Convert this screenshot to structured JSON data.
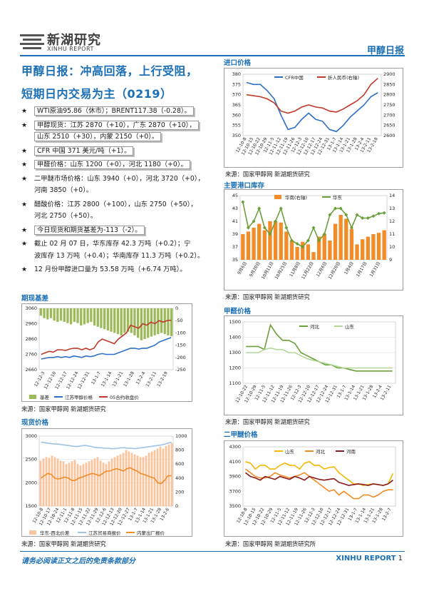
{
  "header": {
    "logo_cn": "新湖研究",
    "logo_en": "XINHU REPORT",
    "report_type": "甲醇日报"
  },
  "title": {
    "line1": "甲醇日报：冲高回落，上行受阻，",
    "line2": "短期日内交易为主（0219）"
  },
  "bullets": [
    {
      "text": "WTI原油95.86（休市）；BRENT117.38（-0.28）。",
      "boxed": true
    },
    {
      "text": "甲醇现货：江苏 2870（+10），广东 2870（+10），",
      "boxed": true
    },
    {
      "text": "山东 2510（+30），内蒙 2150（+0）。",
      "boxed": true,
      "cont": true
    },
    {
      "text": "CFR 中国 371 美元/吨（+1）。",
      "boxed": true
    },
    {
      "text": "甲醛价格：山东 1200（+0），河北 1180（+0）。",
      "boxed": true
    },
    {
      "text": "二甲醚市场价格：山东 3940（+0），河北 3720（+0），",
      "boxed": false
    },
    {
      "text": "河南 3850（+0）。",
      "boxed": false,
      "cont": true
    },
    {
      "text": "醋酸价格：江苏 2800（+100），山东 2750（+50），",
      "boxed": false
    },
    {
      "text": "河北 2750（+50）。",
      "boxed": false,
      "cont": true
    },
    {
      "text": "今日现货和期货基差为-113（-2）。",
      "boxed": true
    },
    {
      "text": "截止 02 月 07 日，华东库存 42.3 万吨（+0.2）；宁",
      "boxed": false
    },
    {
      "text": "波库存 13 万吨（+0.4）；华南库存 11.3 万吨（+0.2）。",
      "boxed": false,
      "cont": true
    },
    {
      "text": "12 月份甲醇进口量为 53.58 万吨（+6.74 万吨）。",
      "boxed": false
    }
  ],
  "sections": {
    "import": "进口价格",
    "inventory": "主要港口库存",
    "basis": "期现基差",
    "formaldehyde": "甲醛价格",
    "spot": "现货价格",
    "dme": "二甲醚价格"
  },
  "sources": {
    "s1": "来源：国家甲醇网  新湖期货研究",
    "s2": "来源：国家甲醇网  新湖期货研究",
    "s3": "来源：国家甲醇网  新湖期货研究",
    "s4": "来源：国家甲醇网  新湖期货研究",
    "s5": "来源：国家甲醇网  新湖期货研究",
    "s6": "来源：国家甲醇网  新湖期货研究所"
  },
  "footer": {
    "disclaimer": "请务必阅读正文之后的免责条款部分",
    "brand": "XINHU REPORT",
    "page": "1"
  },
  "colors": {
    "accent": "#1a6fb5",
    "blue": "#2e6fc9",
    "red": "#c0392b",
    "green": "#6a9f3a",
    "orange": "#f28c28",
    "olive": "#9bbb59",
    "lightgreen": "#b5d69b",
    "darkred": "#8b1a1a",
    "peach": "#f7c59f",
    "lightblue": "#9dc3e6",
    "yellow": "#f5b800"
  },
  "chart_data": [
    {
      "id": "import",
      "type": "line",
      "x_labels": [
        "12-10-8",
        "12-10-15",
        "12-10-22",
        "12-10-29",
        "12-11-5",
        "12-11-12",
        "12-11-19",
        "12-11-26",
        "12-12-3",
        "12-12-10",
        "12-12-17",
        "12-12-24",
        "12-12-31",
        "13-1-7",
        "13-1-14",
        "13-1-21",
        "13-1-28",
        "13-2-4",
        "13-2-11",
        "13-2-18"
      ],
      "ylim_left": [
        350,
        380
      ],
      "yticks_left": [
        350,
        355,
        360,
        365,
        370,
        375,
        380
      ],
      "ylim_right": [
        2600,
        2900
      ],
      "yticks_right": [
        2600,
        2650,
        2700,
        2750,
        2800,
        2850,
        2900
      ],
      "series": [
        {
          "name": "CFR中国",
          "axis": "left",
          "color": "#2e6fc9",
          "values": [
            376,
            375,
            375,
            372,
            368,
            360,
            353,
            354,
            358,
            361,
            358,
            357,
            353,
            352,
            355,
            359,
            362,
            365,
            369,
            371
          ]
        },
        {
          "name": "折人民币(右轴)",
          "axis": "right",
          "color": "#c0392b",
          "values": [
            2800,
            2795,
            2790,
            2780,
            2760,
            2720,
            2710,
            2720,
            2740,
            2750,
            2740,
            2735,
            2720,
            2715,
            2730,
            2750,
            2770,
            2800,
            2850,
            2880
          ]
        }
      ]
    },
    {
      "id": "inventory",
      "type": "bar+line",
      "x_labels": [
        "9月6日",
        "9月20日",
        "10月11日",
        "10月25日",
        "11月8日",
        "11月22日",
        "12月6日",
        "12月20日",
        "1月4日",
        "1月17日",
        "1月31日"
      ],
      "ylim_left": [
        35,
        45
      ],
      "yticks_left": [
        35,
        37,
        39,
        41,
        43,
        45
      ],
      "ylim_right": [
        9,
        14
      ],
      "yticks_right": [
        9,
        10,
        11,
        12,
        13,
        14
      ],
      "series": [
        {
          "name": "华南(右轴)",
          "type": "bar",
          "axis": "right",
          "color": "#f28c28",
          "values": [
            11,
            11.2,
            11.5,
            11.8,
            11.3,
            12,
            12,
            11.9,
            11.2,
            10.5,
            10,
            10.4,
            10.2,
            9.6,
            10.8,
            11,
            10.5,
            11.8,
            12.5,
            12.2,
            11.4,
            10.2,
            10.6,
            10.8,
            11,
            11.1,
            11.3
          ]
        },
        {
          "name": "华东",
          "type": "line",
          "axis": "left",
          "color": "#6a9f3a",
          "values": [
            44,
            40,
            41,
            43,
            40,
            39,
            41,
            43,
            40,
            38,
            37.5,
            37,
            38,
            40,
            38,
            39,
            42,
            43,
            43,
            42,
            40,
            42,
            41.5,
            41.5,
            41.8,
            42.2,
            42.3
          ]
        }
      ]
    },
    {
      "id": "basis",
      "type": "bar+line",
      "x_labels": [
        "12-12-3",
        "12-12-10",
        "12-12-17",
        "12-12-24",
        "12-12-31",
        "13-1-7",
        "13-1-14",
        "13-1-21",
        "13-1-28",
        "13-2-4",
        "13-2-11",
        "13-2-19"
      ],
      "ylim_left": [
        2660,
        3060
      ],
      "yticks_left": [
        2660,
        2760,
        2860,
        2960,
        3060
      ],
      "ylim_right": [
        -250,
        0
      ],
      "yticks_right": [
        0,
        -50,
        -100,
        -150,
        -200,
        -250
      ],
      "series": [
        {
          "name": "基差",
          "type": "bar",
          "axis": "right",
          "color": "#9bbb59",
          "values": [
            -30,
            -40,
            -45,
            -40,
            -50,
            -55,
            -50,
            -55,
            -60,
            -65,
            -55,
            -60,
            -70,
            -65,
            -60,
            -55,
            -70,
            -75,
            -80,
            -85,
            -90,
            -95,
            -100,
            -105,
            -110,
            -100,
            -95,
            -100,
            -110,
            -120,
            -130,
            -125,
            -120,
            -115,
            -110,
            -105,
            -100,
            -105,
            -110,
            -113
          ]
        },
        {
          "name": "江苏甲醇价格",
          "type": "line",
          "axis": "left",
          "color": "#2e6fc9",
          "values": [
            2730,
            2735,
            2740,
            2740,
            2745,
            2740,
            2745,
            2740,
            2750,
            2745,
            2740,
            2750,
            2745,
            2750,
            2760,
            2765,
            2760,
            2760,
            2760,
            2770,
            2780,
            2790,
            2800,
            2800,
            2795,
            2800,
            2800,
            2810,
            2820,
            2840,
            2850,
            2860,
            2870
          ]
        },
        {
          "name": "05合约收盘价",
          "type": "line",
          "axis": "left",
          "color": "#c0392b",
          "values": [
            2760,
            2770,
            2780,
            2775,
            2790,
            2790,
            2785,
            2795,
            2800,
            2800,
            2790,
            2800,
            2790,
            2800,
            2840,
            2860,
            2850,
            2840,
            2830,
            2860,
            2880,
            2900,
            2950,
            2940,
            2930,
            2960,
            2950,
            2970,
            2960,
            2980,
            2970,
            2980,
            2983
          ]
        }
      ]
    },
    {
      "id": "formaldehyde",
      "type": "line",
      "x_labels": [
        "12-10-22",
        "12-10-29",
        "12-11-5",
        "12-11-12",
        "12-11-19",
        "12-11-26",
        "12-12-3",
        "12-12-10",
        "12-12-17",
        "12-12-24",
        "12-12-31",
        "13-1-7",
        "13-1-14",
        "13-1-21",
        "13-1-28",
        "13-2-4",
        "13-2-11"
      ],
      "ylim": [
        1100,
        1500
      ],
      "yticks": [
        1100,
        1200,
        1300,
        1400,
        1500
      ],
      "series": [
        {
          "name": "河北",
          "color": "#6a9f3a",
          "values": [
            1340,
            1340,
            1340,
            1320,
            1480,
            1420,
            1380,
            1380,
            1360,
            1300,
            1280,
            1260,
            1240,
            1220,
            1220,
            1200,
            1200,
            1190,
            1180,
            1180,
            1180,
            1180,
            1180,
            1180,
            1180
          ]
        },
        {
          "name": "山东",
          "color": "#b5d69b",
          "values": [
            1300,
            1300,
            1300,
            1320,
            1330,
            1320,
            1320,
            1300,
            1300,
            1280,
            1260,
            1250,
            1240,
            1230,
            1220,
            1210,
            1200,
            1200,
            1200,
            1200,
            1200,
            1200,
            1200,
            1200,
            1200
          ]
        }
      ]
    },
    {
      "id": "spot",
      "type": "bar+line",
      "x_labels": [
        "12-10-8",
        "12-10-17",
        "12-10-24",
        "12-11-1",
        "12-11-8",
        "12-11-15",
        "12-11-22",
        "12-11-29",
        "12-12-6",
        "12-12-13",
        "12-12-20",
        "12-12-27",
        "13-1-7",
        "13-1-14",
        "13-1-21",
        "13-1-28",
        "13-2-6"
      ],
      "ylim_left": [
        1500,
        3000
      ],
      "yticks_left": [
        1500,
        2000,
        2500,
        3000
      ],
      "ylim_right": [
        0,
        1000
      ],
      "yticks_right": [
        0,
        200,
        400,
        600,
        800,
        1000
      ],
      "series": [
        {
          "name": "华东-西北价差",
          "type": "bar",
          "axis": "right",
          "color": "#f7c59f",
          "values": [
            650,
            680,
            700,
            690,
            720,
            700,
            680,
            650,
            640,
            600,
            620,
            640,
            660,
            600,
            580,
            600,
            620,
            640,
            660,
            680,
            700,
            650,
            620,
            600,
            640,
            680,
            700,
            720,
            740,
            760,
            800,
            780,
            760,
            740,
            720,
            700,
            700,
            720,
            760,
            780,
            800,
            820,
            850,
            820,
            860,
            880,
            900
          ]
        },
        {
          "name": "江苏贸易商报价",
          "type": "line",
          "axis": "left",
          "color": "#9dc3e6",
          "values": [
            2870,
            2860,
            2850,
            2840,
            2830,
            2830,
            2820,
            2810,
            2800,
            2790,
            2780,
            2780,
            2790,
            2800,
            2790,
            2780,
            2760,
            2750,
            2750,
            2740,
            2740,
            2730,
            2730,
            2740,
            2750,
            2750,
            2740,
            2740,
            2730,
            2740,
            2750,
            2760,
            2770,
            2780,
            2790,
            2800,
            2810,
            2830,
            2850,
            2870
          ]
        },
        {
          "name": "内蒙出厂报价",
          "type": "line",
          "axis": "left",
          "color": "#f28c28",
          "values": [
            2100,
            2150,
            2200,
            2180,
            2100,
            2080,
            2100,
            2120,
            2100,
            2050,
            2050,
            2100,
            2120,
            2150,
            2180,
            2200,
            2180,
            2150,
            2200,
            2250,
            2250,
            2280,
            2300,
            2280,
            2250,
            2300,
            2320,
            2280,
            2250,
            2200,
            2180,
            2150,
            2120,
            2100,
            2000,
            1980,
            2050,
            2150,
            2150
          ]
        }
      ]
    },
    {
      "id": "dme",
      "type": "line",
      "x_labels": [
        "12-10-8",
        "12-10-15",
        "12-10-22",
        "12-10-29",
        "12-11-5",
        "12-11-12",
        "12-11-19",
        "12-11-26",
        "12-12-3",
        "12-12-10",
        "12-12-17",
        "12-12-24",
        "12-12-31",
        "13-1-7",
        "13-1-14",
        "13-1-21",
        "13-1-28",
        "13-2-7"
      ],
      "ylim": [
        3500,
        4300
      ],
      "yticks": [
        3500,
        3700,
        3900,
        4100,
        4300
      ],
      "series": [
        {
          "name": "山东",
          "color": "#f5b800",
          "values": [
            4100,
            4080,
            4000,
            4050,
            4050,
            4000,
            4000,
            4050,
            4080,
            4050,
            4050,
            4000,
            4080,
            4100,
            4050,
            4050,
            4000,
            4020,
            4030,
            3950,
            3900,
            3850,
            3800,
            3800,
            3780,
            3790,
            3800,
            3790,
            3780,
            3800,
            3940
          ]
        },
        {
          "name": "河北",
          "color": "#f28c28",
          "values": [
            4000,
            3950,
            3900,
            3880,
            3880,
            3900,
            3950,
            3920,
            3900,
            3880,
            3900,
            3920,
            3950,
            3900,
            3850,
            3800,
            3750,
            3700,
            3720,
            3650,
            3700,
            3650,
            3600,
            3600,
            3650,
            3650,
            3620,
            3650,
            3700,
            3720,
            3720
          ]
        },
        {
          "name": "河南",
          "color": "#8b1a1a",
          "values": [
            3950,
            3900,
            3880,
            3850,
            3900,
            3880,
            3860,
            3900,
            3880,
            3860,
            3900,
            3880,
            3850,
            3900,
            3880,
            3860,
            3850,
            3860,
            3870,
            3820,
            3800,
            3780,
            3790,
            3800,
            3790,
            3780,
            3800,
            3790,
            3780,
            3800,
            3850
          ]
        }
      ]
    }
  ]
}
